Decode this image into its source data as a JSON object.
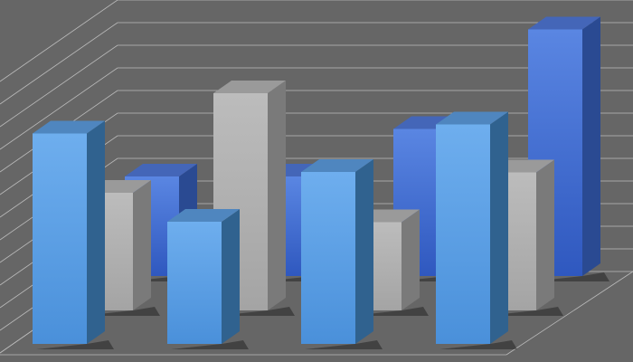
{
  "chart_data": {
    "type": "bar",
    "style": "3d-clustered-rows",
    "title": "",
    "xlabel": "",
    "ylabel": "",
    "categories": [
      "",
      "",
      "",
      ""
    ],
    "series": [
      {
        "values": [
          4.4,
          4.4,
          6.5,
          10.9
        ],
        "color": "#3e66cc",
        "row": "back"
      },
      {
        "values": [
          5.2,
          9.6,
          3.9,
          6.1
        ],
        "color": "#b0b0b0",
        "row": "middle"
      },
      {
        "values": [
          9.3,
          5.4,
          7.6,
          9.7
        ],
        "color": "#5b9ee3",
        "row": "front"
      }
    ],
    "ylim": [
      0,
      12
    ],
    "grid": true,
    "legend": "none",
    "background": "#666666"
  }
}
